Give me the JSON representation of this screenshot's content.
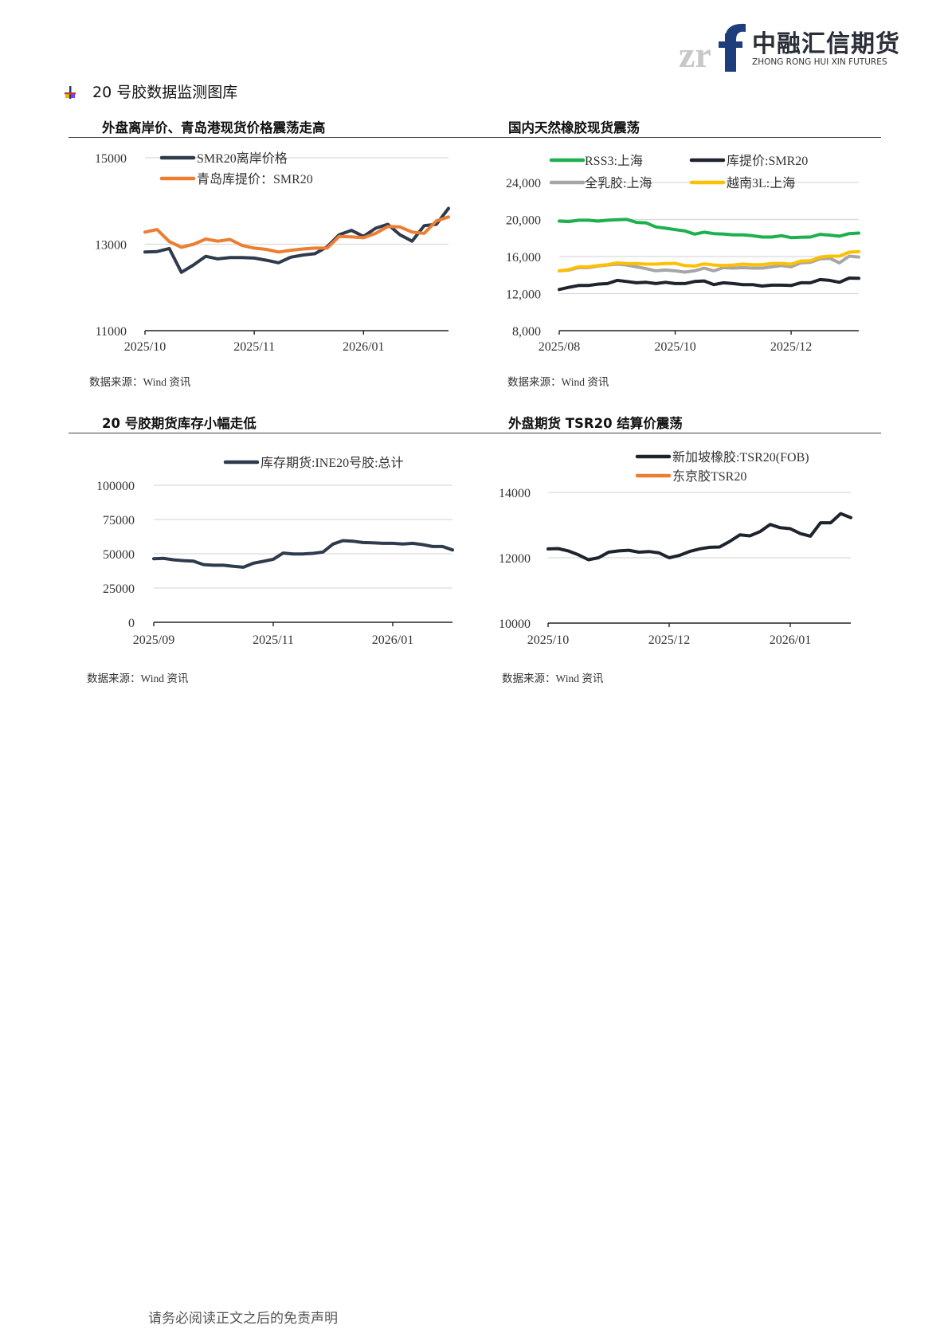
{
  "logo": {
    "cn": "中融汇信期货",
    "en": "ZHONG RONG HUI XIN FUTURES",
    "mark": "zrf"
  },
  "section_title": "20 号胶数据监测图库",
  "footer": "请务必阅读正文之后的免责声明",
  "colors": {
    "navy": "#2f3b4c",
    "orange": "#ed7d31",
    "green": "#1db04f",
    "black": "#1e232d",
    "gray": "#a6a6a6",
    "yellow": "#ffc000"
  },
  "chart_data": [
    {
      "type": "line",
      "title": "外盘离岸价、青岛港现货价格震荡走高",
      "source": "数据来源：Wind 资讯",
      "ylim": [
        11000,
        15000
      ],
      "yticks": [
        "11000",
        "13000",
        "15000"
      ],
      "ytick_values": [
        11000,
        13000,
        15000
      ],
      "x_ticks": [
        {
          "label": "2025/10",
          "index": 0
        },
        {
          "label": "2025/11",
          "index": 9
        },
        {
          "label": "2026/01",
          "index": 18
        }
      ],
      "grid": true,
      "legend": "top-left",
      "series": [
        {
          "name": "SMR20离岸价格",
          "color": "#2f3b4c",
          "values": [
            12820,
            12830,
            12900,
            12350,
            12520,
            12720,
            12660,
            12690,
            12690,
            12680,
            12630,
            12570,
            12700,
            12750,
            12780,
            12940,
            13220,
            13320,
            13180,
            13370,
            13460,
            13220,
            13070,
            13430,
            13460,
            13830
          ]
        },
        {
          "name": "青岛库提价：SMR20",
          "color": "#ed7d31",
          "values": [
            13280,
            13340,
            13060,
            12930,
            13000,
            13120,
            13070,
            13110,
            12970,
            12910,
            12880,
            12820,
            12860,
            12890,
            12910,
            12910,
            13180,
            13170,
            13150,
            13250,
            13410,
            13400,
            13280,
            13250,
            13540,
            13630
          ]
        }
      ]
    },
    {
      "type": "line",
      "title": "国内天然橡胶现货震荡",
      "source": "数据来源：Wind 资讯",
      "ylim": [
        8000,
        24000
      ],
      "yticks": [
        "8,000",
        "12,000",
        "16,000",
        "20,000",
        "24,000"
      ],
      "ytick_values": [
        8000,
        12000,
        16000,
        20000,
        24000
      ],
      "x_ticks": [
        {
          "label": "2025/08",
          "index": 0
        },
        {
          "label": "2025/10",
          "index": 12
        },
        {
          "label": "2025/12",
          "index": 24
        }
      ],
      "grid": true,
      "legend": "top",
      "series": [
        {
          "name": "RSS3:上海",
          "color": "#1db04f",
          "values": [
            19830,
            19780,
            19920,
            19920,
            19830,
            19920,
            19980,
            20010,
            19690,
            19630,
            19200,
            19060,
            18910,
            18770,
            18430,
            18630,
            18480,
            18430,
            18340,
            18340,
            18250,
            18110,
            18110,
            18250,
            18050,
            18080,
            18110,
            18400,
            18310,
            18200,
            18480,
            18540
          ]
        },
        {
          "name": "库提价:SMR20",
          "color": "#1e232d",
          "values": [
            12450,
            12680,
            12880,
            12880,
            13020,
            13080,
            13430,
            13310,
            13170,
            13220,
            13080,
            13220,
            13080,
            13080,
            13310,
            13370,
            12970,
            13170,
            13080,
            12970,
            12970,
            12820,
            12910,
            12910,
            12880,
            13170,
            13170,
            13510,
            13430,
            13220,
            13680,
            13650
          ]
        },
        {
          "name": "全乳胶:上海",
          "color": "#a6a6a6",
          "values": [
            14460,
            14550,
            14800,
            14800,
            14980,
            15090,
            15180,
            15090,
            14890,
            14690,
            14460,
            14550,
            14460,
            14320,
            14460,
            14750,
            14460,
            14800,
            14750,
            14800,
            14750,
            14750,
            14890,
            15030,
            14890,
            15320,
            15380,
            15750,
            15810,
            15320,
            16040,
            15950
          ]
        },
        {
          "name": "越南3L:上海",
          "color": "#ffc000",
          "values": [
            14460,
            14600,
            14890,
            14890,
            15030,
            15120,
            15320,
            15240,
            15240,
            15180,
            15180,
            15240,
            15260,
            15030,
            14980,
            15210,
            15090,
            15030,
            15090,
            15180,
            15120,
            15120,
            15260,
            15260,
            15180,
            15520,
            15550,
            15950,
            16040,
            16040,
            16470,
            16530
          ]
        }
      ]
    },
    {
      "type": "line",
      "title": "20 号胶期货库存小幅走低",
      "source": "数据来源：Wind 资讯",
      "ylim": [
        0,
        100000
      ],
      "yticks": [
        "0",
        "25000",
        "50000",
        "75000",
        "100000"
      ],
      "ytick_values": [
        0,
        25000,
        50000,
        75000,
        100000
      ],
      "x_ticks": [
        {
          "label": "2025/09",
          "index": 0
        },
        {
          "label": "2025/11",
          "index": 12
        },
        {
          "label": "2026/01",
          "index": 24
        }
      ],
      "grid": true,
      "legend": "top",
      "series": [
        {
          "name": "库存期货:INE20号胶:总计",
          "color": "#2f3b4c",
          "values": [
            46400,
            46600,
            45600,
            45000,
            44600,
            42100,
            41600,
            41600,
            40800,
            40200,
            43100,
            44500,
            46000,
            50500,
            49900,
            49900,
            50300,
            51300,
            57100,
            59600,
            59200,
            58200,
            58000,
            57600,
            57600,
            57100,
            57600,
            56700,
            55300,
            55300,
            52800
          ]
        }
      ]
    },
    {
      "type": "line",
      "title": "外盘期货 TSR20 结算价震荡",
      "source": "数据来源：Wind 资讯",
      "ylim": [
        10000,
        14000
      ],
      "yticks": [
        "10000",
        "12000",
        "14000"
      ],
      "ytick_values": [
        10000,
        12000,
        14000
      ],
      "x_ticks": [
        {
          "label": "2025/10",
          "index": 0
        },
        {
          "label": "2025/12",
          "index": 12
        },
        {
          "label": "2026/01",
          "index": 24
        }
      ],
      "grid": true,
      "legend": "top",
      "series": [
        {
          "name": "新加坡橡胶:TSR20(FOB)",
          "color": "#1e232d",
          "values": [
            12270,
            12280,
            12210,
            12090,
            11940,
            12000,
            12170,
            12210,
            12230,
            12170,
            12190,
            12150,
            12000,
            12070,
            12190,
            12270,
            12320,
            12330,
            12500,
            12700,
            12670,
            12800,
            13020,
            12920,
            12890,
            12740,
            12660,
            13070,
            13070,
            13350,
            13230
          ]
        },
        {
          "name": "东京胶TSR20",
          "color": "#ed7d31",
          "values": []
        }
      ]
    }
  ]
}
